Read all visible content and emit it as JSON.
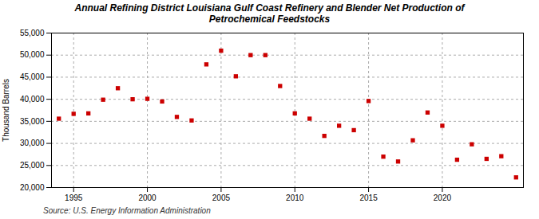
{
  "chart_data": {
    "type": "scatter",
    "title": "Annual Refining District Louisiana Gulf Coast Refinery and Blender Net Production of\nPetrochemical Feedstocks",
    "y_label": "Thousand Barrels",
    "annotations": [
      "Source: U.S. Energy Information Administration"
    ],
    "x": [
      1994,
      1995,
      1996,
      1997,
      1998,
      1999,
      2000,
      2001,
      2002,
      2003,
      2004,
      2005,
      2006,
      2007,
      2008,
      2009,
      2010,
      2011,
      2012,
      2013,
      2014,
      2015,
      2016,
      2017,
      2018,
      2019,
      2020,
      2021,
      2022,
      2023,
      2024,
      2025
    ],
    "values": [
      35600,
      36700,
      36800,
      39900,
      42500,
      40000,
      40100,
      39500,
      36000,
      35200,
      47900,
      51000,
      45200,
      50000,
      50000,
      43000,
      36800,
      35600,
      31700,
      34000,
      33000,
      39600,
      27000,
      25900,
      30700,
      37000,
      34000,
      26300,
      29800,
      26500,
      27100,
      22300
    ],
    "color": "#cc0000",
    "marker": "square",
    "xlim": [
      1993.5,
      2025.5
    ],
    "xticks": [
      1995,
      2000,
      2005,
      2010,
      2015,
      2020
    ],
    "ylim": [
      20000,
      55000
    ],
    "yticks": [
      {
        "value": 20000,
        "label": "20,000"
      },
      {
        "value": 25000,
        "label": "25,000"
      },
      {
        "value": 30000,
        "label": "30,000"
      },
      {
        "value": 35000,
        "label": "35,000"
      },
      {
        "value": 40000,
        "label": "40,000"
      },
      {
        "value": 45000,
        "label": "45,000"
      },
      {
        "value": 50000,
        "label": "50,000"
      },
      {
        "value": 55000,
        "label": "55,000"
      }
    ],
    "grid": true
  }
}
